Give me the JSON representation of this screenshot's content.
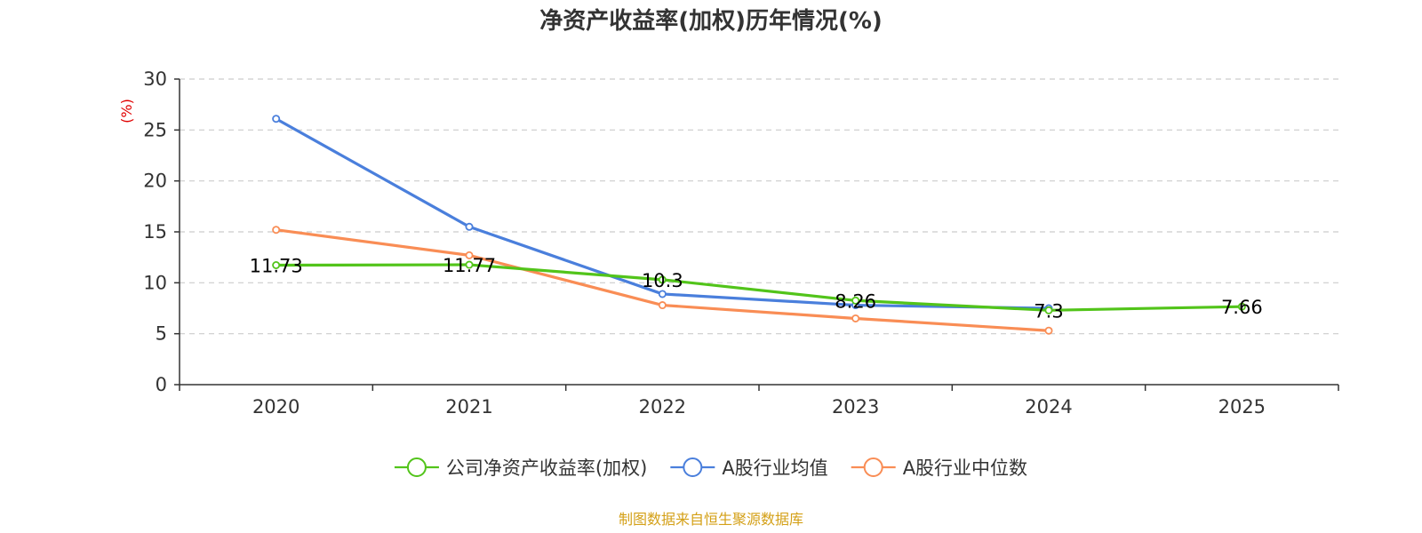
{
  "chart_data": {
    "type": "line",
    "title": "净资产收益率(加权)历年情况(%)",
    "ylabel": "(%)",
    "xlabel": "",
    "categories": [
      "2020",
      "2021",
      "2022",
      "2023",
      "2024",
      "2025"
    ],
    "ylim": [
      0,
      30
    ],
    "yticks": [
      0,
      5,
      10,
      15,
      20,
      25,
      30
    ],
    "grid": true,
    "legend_position": "bottom",
    "series": [
      {
        "name": "公司净资产收益率(加权)",
        "color": "#52c41a",
        "values": [
          11.73,
          11.77,
          10.3,
          8.26,
          7.3,
          7.66
        ],
        "labels": [
          "11.73",
          "11.77",
          "10.3",
          "8.26",
          "7.3",
          "7.66"
        ]
      },
      {
        "name": "A股行业均值",
        "color": "#4a7fdc",
        "values": [
          26.1,
          15.5,
          8.9,
          7.8,
          7.5,
          null
        ]
      },
      {
        "name": "A股行业中位数",
        "color": "#f98d55",
        "values": [
          15.2,
          12.7,
          7.8,
          6.5,
          5.3,
          null
        ]
      }
    ],
    "source": "制图数据来自恒生聚源数据库"
  },
  "colors": {
    "title": "#333333",
    "axis": "#333333",
    "grid": "#cccccc",
    "ylabel": "#e00000",
    "source": "#d4a017"
  }
}
